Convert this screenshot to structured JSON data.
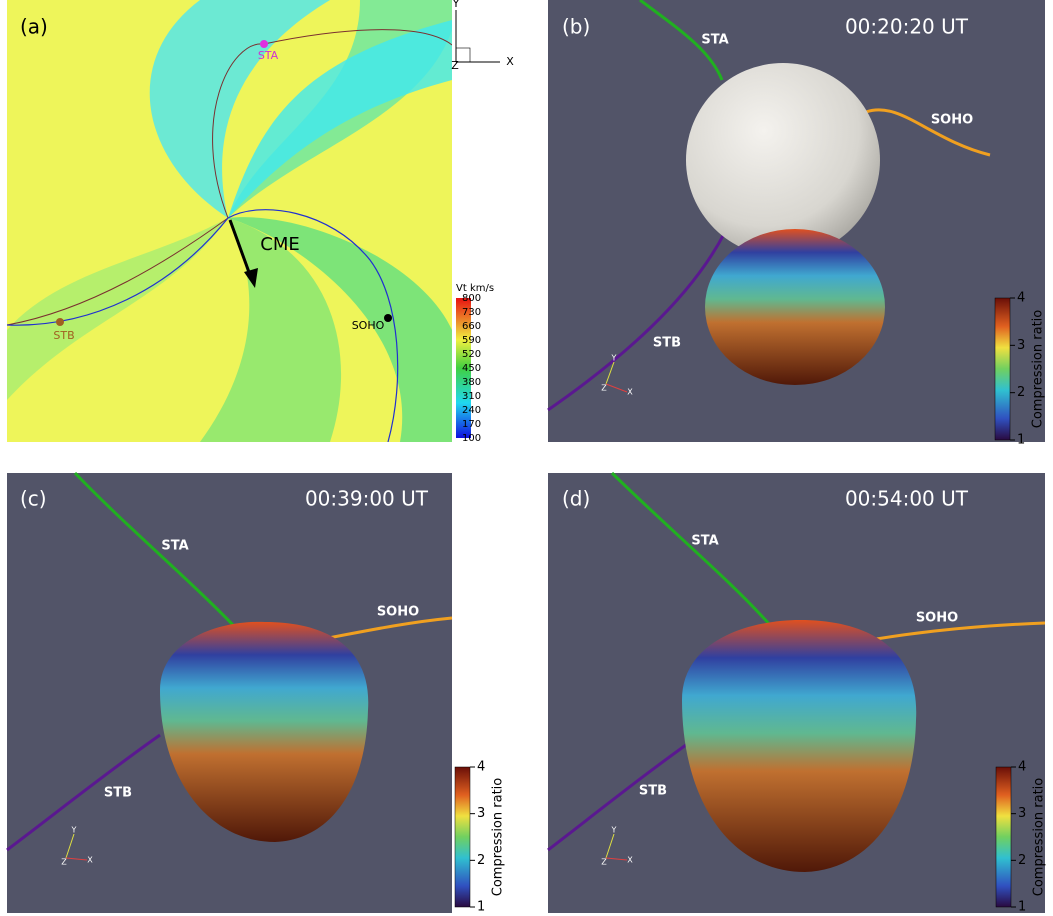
{
  "panels": [
    {
      "label": "(a)",
      "spacecraft": [
        "STA",
        "STB",
        "SOHO"
      ],
      "annotation": "CME",
      "axes": [
        "Y",
        "X",
        "Z"
      ],
      "colorbar": {
        "title": "Vt km/s",
        "range": [
          100,
          800
        ],
        "ticks": [
          800,
          730,
          660,
          590,
          520,
          450,
          380,
          310,
          240,
          170,
          100
        ]
      }
    },
    {
      "label": "(b)",
      "time": "00:20:20 UT",
      "spacecraft": [
        "STA",
        "SOHO",
        "STB"
      ],
      "axes": [
        "Y",
        "Z",
        "X"
      ],
      "colorbar": {
        "title": "Compression ratio",
        "range": [
          1,
          4
        ],
        "ticks": [
          4,
          3,
          2,
          1
        ]
      }
    },
    {
      "label": "(c)",
      "time": "00:39:00 UT",
      "spacecraft": [
        "STA",
        "SOHO",
        "STB"
      ],
      "axes": [
        "Y",
        "Z",
        "X"
      ],
      "colorbar": {
        "title": "Compression ratio",
        "range": [
          1,
          4
        ],
        "ticks": [
          4,
          3,
          2,
          1
        ]
      }
    },
    {
      "label": "(d)",
      "time": "00:54:00 UT",
      "spacecraft": [
        "STA",
        "SOHO",
        "STB"
      ],
      "axes": [
        "Y",
        "Z",
        "X"
      ],
      "colorbar": {
        "title": "Compression ratio",
        "range": [
          1,
          4
        ],
        "ticks": [
          4,
          3,
          2,
          1
        ]
      }
    }
  ]
}
